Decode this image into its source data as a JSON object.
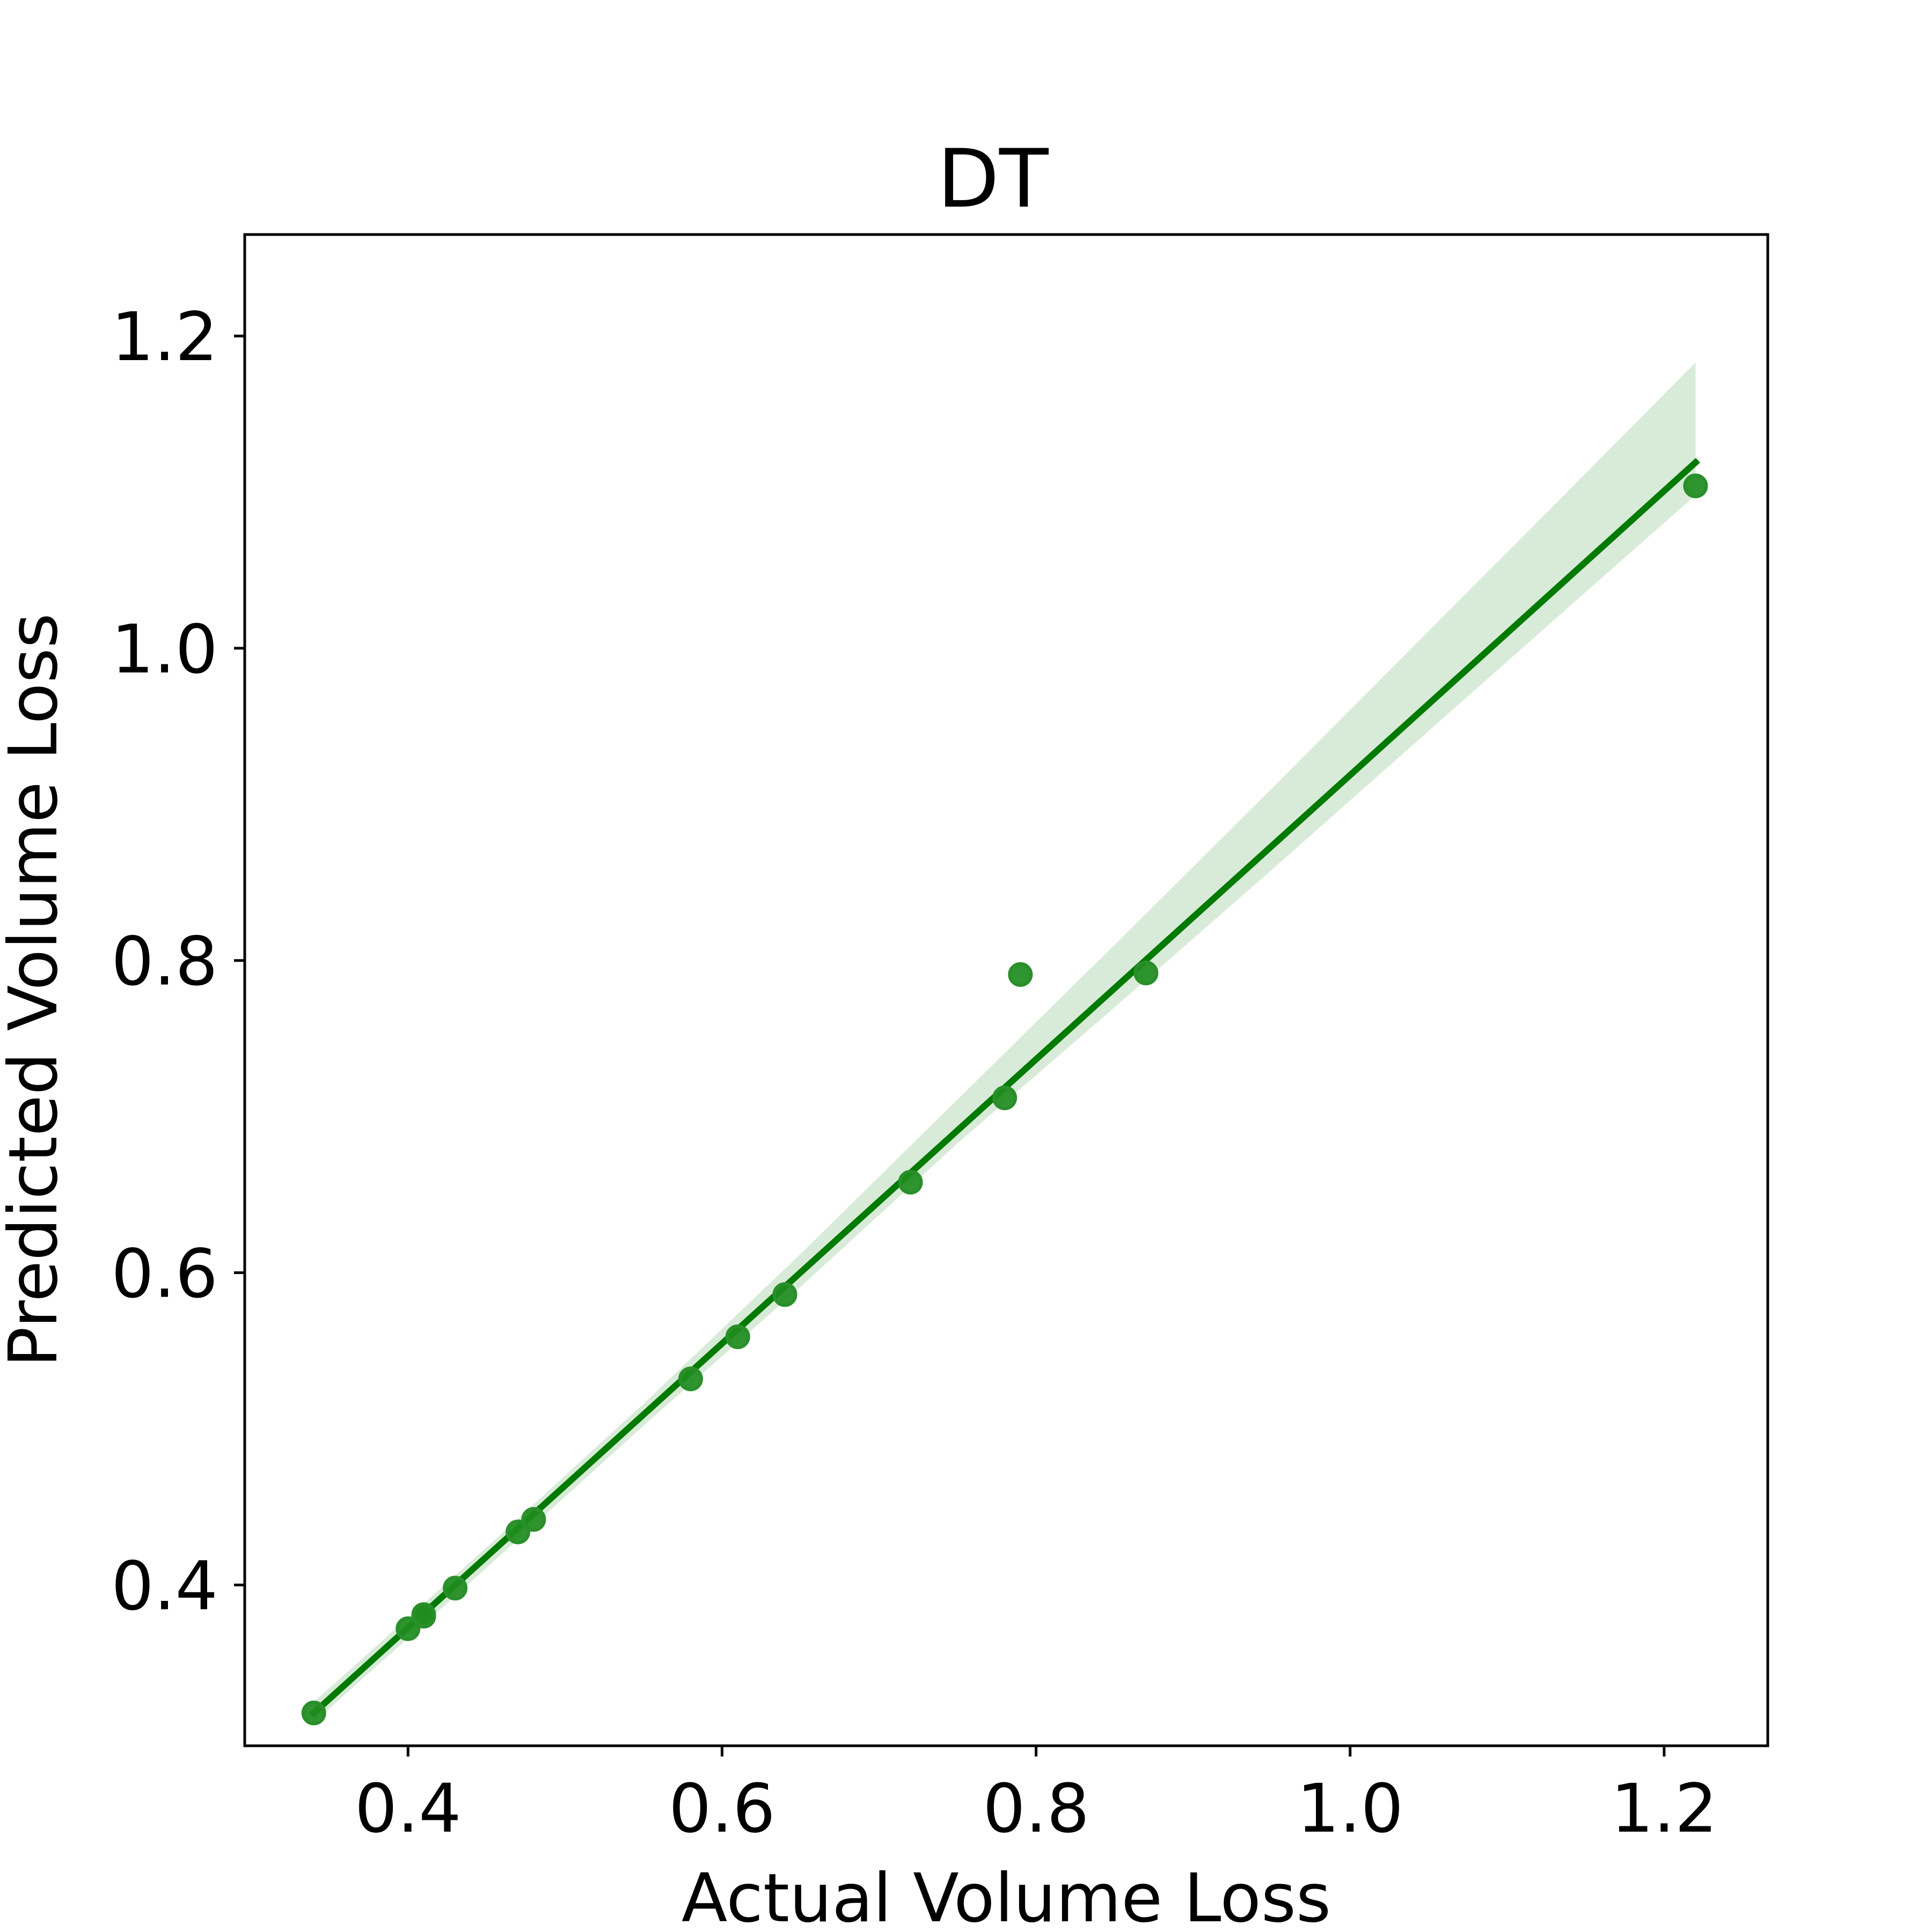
{
  "chart_data": {
    "type": "scatter",
    "title": "DT",
    "xlabel": "Actual Volume Loss",
    "ylabel": "Predicted Volume Loss",
    "xlim": [
      0.296,
      1.266
    ],
    "ylim": [
      0.297,
      1.265
    ],
    "x_ticks": [
      0.4,
      0.6,
      0.8,
      1.0,
      1.2
    ],
    "x_tick_labels": [
      "0.4",
      "0.6",
      "0.8",
      "1.0",
      "1.2"
    ],
    "y_ticks": [
      0.4,
      0.6,
      0.8,
      1.0,
      1.2
    ],
    "y_tick_labels": [
      "0.4",
      "0.6",
      "0.8",
      "1.0",
      "1.2"
    ],
    "grid": false,
    "series": [
      {
        "points": [
          {
            "x": 0.34,
            "y": 0.318
          },
          {
            "x": 0.4,
            "y": 0.372
          },
          {
            "x": 0.41,
            "y": 0.38
          },
          {
            "x": 0.41,
            "y": 0.381
          },
          {
            "x": 0.43,
            "y": 0.398
          },
          {
            "x": 0.47,
            "y": 0.434
          },
          {
            "x": 0.48,
            "y": 0.442
          },
          {
            "x": 0.58,
            "y": 0.532
          },
          {
            "x": 0.61,
            "y": 0.559
          },
          {
            "x": 0.64,
            "y": 0.586
          },
          {
            "x": 0.72,
            "y": 0.658
          },
          {
            "x": 0.78,
            "y": 0.712
          },
          {
            "x": 0.79,
            "y": 0.791
          },
          {
            "x": 0.87,
            "y": 0.792
          },
          {
            "x": 1.22,
            "y": 1.104
          }
        ]
      }
    ],
    "regression_line": {
      "x": [
        0.34,
        1.22
      ],
      "y": [
        0.318,
        1.119
      ]
    },
    "confidence_band": {
      "x": [
        0.34,
        0.45,
        0.55,
        0.65,
        0.75,
        0.85,
        0.95,
        1.05,
        1.15,
        1.22
      ],
      "upper": [
        0.325,
        0.424,
        0.516,
        0.612,
        0.711,
        0.81,
        0.91,
        1.011,
        1.112,
        1.183
      ],
      "lower": [
        0.312,
        0.411,
        0.502,
        0.591,
        0.683,
        0.77,
        0.858,
        0.947,
        1.036,
        1.098
      ]
    },
    "colors": {
      "points": "#1e8c1e",
      "point_edge": "#2a8f2a",
      "line": "#007a00",
      "band": "#d8ebd8",
      "axis": "#000000"
    }
  }
}
